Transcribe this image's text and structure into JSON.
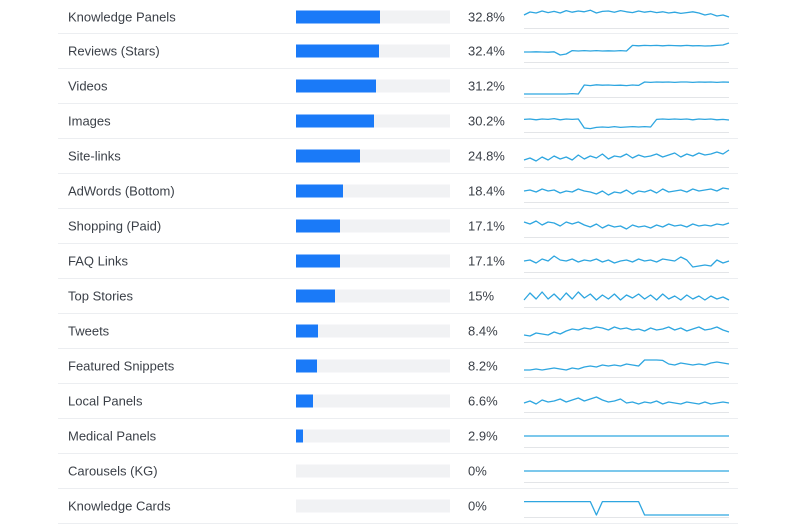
{
  "features": [
    {
      "label": "Knowledge Panels",
      "percent_text": "32.8%",
      "share": 0.328,
      "trend": [
        0.6,
        0.75,
        0.7,
        0.8,
        0.72,
        0.78,
        0.7,
        0.82,
        0.74,
        0.8,
        0.76,
        0.84,
        0.7,
        0.78,
        0.8,
        0.74,
        0.82,
        0.76,
        0.72,
        0.8,
        0.74,
        0.78,
        0.72,
        0.76,
        0.7,
        0.74,
        0.68,
        0.72,
        0.76,
        0.7,
        0.6,
        0.66,
        0.55,
        0.6,
        0.5
      ]
    },
    {
      "label": "Reviews (Stars)",
      "percent_text": "32.4%",
      "share": 0.324,
      "trend": [
        0.45,
        0.45,
        0.46,
        0.45,
        0.44,
        0.46,
        0.3,
        0.35,
        0.52,
        0.5,
        0.52,
        0.5,
        0.52,
        0.5,
        0.51,
        0.5,
        0.52,
        0.5,
        0.78,
        0.76,
        0.78,
        0.77,
        0.78,
        0.76,
        0.78,
        0.77,
        0.76,
        0.78,
        0.76,
        0.77,
        0.75,
        0.76,
        0.78,
        0.8,
        0.9
      ]
    },
    {
      "label": "Videos",
      "percent_text": "31.2%",
      "share": 0.312,
      "trend": [
        0.1,
        0.1,
        0.1,
        0.1,
        0.1,
        0.1,
        0.1,
        0.1,
        0.12,
        0.1,
        0.55,
        0.52,
        0.56,
        0.54,
        0.55,
        0.53,
        0.54,
        0.52,
        0.55,
        0.53,
        0.7,
        0.68,
        0.7,
        0.69,
        0.7,
        0.68,
        0.7,
        0.7,
        0.68,
        0.7,
        0.69,
        0.7,
        0.68,
        0.7,
        0.69
      ]
    },
    {
      "label": "Images",
      "percent_text": "30.2%",
      "share": 0.302,
      "trend": [
        0.58,
        0.6,
        0.56,
        0.6,
        0.58,
        0.62,
        0.56,
        0.6,
        0.58,
        0.6,
        0.15,
        0.12,
        0.18,
        0.2,
        0.18,
        0.22,
        0.18,
        0.2,
        0.22,
        0.2,
        0.22,
        0.2,
        0.58,
        0.6,
        0.58,
        0.6,
        0.58,
        0.6,
        0.56,
        0.6,
        0.58,
        0.6,
        0.56,
        0.58,
        0.55
      ]
    },
    {
      "label": "Site-links",
      "percent_text": "24.8%",
      "share": 0.248,
      "trend": [
        0.3,
        0.4,
        0.25,
        0.45,
        0.3,
        0.5,
        0.35,
        0.45,
        0.3,
        0.55,
        0.35,
        0.5,
        0.4,
        0.6,
        0.35,
        0.5,
        0.45,
        0.6,
        0.4,
        0.55,
        0.45,
        0.5,
        0.6,
        0.45,
        0.55,
        0.65,
        0.45,
        0.6,
        0.5,
        0.65,
        0.55,
        0.6,
        0.7,
        0.6,
        0.8
      ]
    },
    {
      "label": "AdWords (Bottom)",
      "percent_text": "18.4%",
      "share": 0.184,
      "trend": [
        0.5,
        0.55,
        0.45,
        0.6,
        0.5,
        0.55,
        0.4,
        0.5,
        0.45,
        0.6,
        0.5,
        0.45,
        0.35,
        0.5,
        0.3,
        0.45,
        0.4,
        0.55,
        0.35,
        0.5,
        0.45,
        0.55,
        0.4,
        0.6,
        0.45,
        0.5,
        0.55,
        0.45,
        0.6,
        0.5,
        0.55,
        0.6,
        0.5,
        0.65,
        0.6
      ]
    },
    {
      "label": "Shopping (Paid)",
      "percent_text": "17.1%",
      "share": 0.171,
      "trend": [
        0.7,
        0.6,
        0.75,
        0.55,
        0.7,
        0.65,
        0.5,
        0.7,
        0.6,
        0.7,
        0.55,
        0.45,
        0.6,
        0.4,
        0.55,
        0.45,
        0.5,
        0.35,
        0.55,
        0.45,
        0.5,
        0.4,
        0.55,
        0.45,
        0.6,
        0.5,
        0.55,
        0.45,
        0.6,
        0.5,
        0.55,
        0.5,
        0.6,
        0.55,
        0.65
      ]
    },
    {
      "label": "FAQ Links",
      "percent_text": "17.1%",
      "share": 0.171,
      "trend": [
        0.5,
        0.55,
        0.4,
        0.6,
        0.5,
        0.75,
        0.55,
        0.5,
        0.6,
        0.45,
        0.55,
        0.5,
        0.6,
        0.45,
        0.55,
        0.4,
        0.5,
        0.55,
        0.45,
        0.6,
        0.5,
        0.55,
        0.45,
        0.6,
        0.55,
        0.5,
        0.7,
        0.55,
        0.2,
        0.25,
        0.3,
        0.25,
        0.55,
        0.4,
        0.5
      ]
    },
    {
      "label": "Top Stories",
      "percent_text": "15%",
      "share": 0.15,
      "trend": [
        0.3,
        0.65,
        0.35,
        0.7,
        0.35,
        0.6,
        0.3,
        0.65,
        0.35,
        0.7,
        0.4,
        0.6,
        0.3,
        0.55,
        0.35,
        0.6,
        0.3,
        0.55,
        0.4,
        0.6,
        0.35,
        0.55,
        0.3,
        0.6,
        0.35,
        0.5,
        0.3,
        0.55,
        0.35,
        0.5,
        0.3,
        0.5,
        0.35,
        0.45,
        0.3
      ]
    },
    {
      "label": "Tweets",
      "percent_text": "8.4%",
      "share": 0.084,
      "trend": [
        0.3,
        0.25,
        0.4,
        0.35,
        0.3,
        0.45,
        0.35,
        0.5,
        0.6,
        0.55,
        0.65,
        0.6,
        0.7,
        0.65,
        0.55,
        0.7,
        0.6,
        0.65,
        0.55,
        0.6,
        0.5,
        0.65,
        0.55,
        0.6,
        0.7,
        0.55,
        0.65,
        0.5,
        0.6,
        0.7,
        0.55,
        0.6,
        0.7,
        0.55,
        0.45
      ]
    },
    {
      "label": "Featured Snippets",
      "percent_text": "8.2%",
      "share": 0.082,
      "trend": [
        0.3,
        0.3,
        0.35,
        0.3,
        0.35,
        0.4,
        0.35,
        0.3,
        0.4,
        0.35,
        0.45,
        0.5,
        0.45,
        0.55,
        0.5,
        0.55,
        0.5,
        0.6,
        0.55,
        0.5,
        0.8,
        0.8,
        0.8,
        0.78,
        0.6,
        0.55,
        0.65,
        0.6,
        0.55,
        0.6,
        0.55,
        0.65,
        0.7,
        0.65,
        0.6
      ]
    },
    {
      "label": "Local Panels",
      "percent_text": "6.6%",
      "share": 0.066,
      "trend": [
        0.4,
        0.5,
        0.35,
        0.55,
        0.45,
        0.5,
        0.6,
        0.45,
        0.55,
        0.65,
        0.5,
        0.6,
        0.7,
        0.55,
        0.45,
        0.5,
        0.6,
        0.4,
        0.45,
        0.35,
        0.45,
        0.4,
        0.5,
        0.35,
        0.45,
        0.4,
        0.35,
        0.45,
        0.4,
        0.35,
        0.45,
        0.35,
        0.4,
        0.45,
        0.4
      ]
    },
    {
      "label": "Medical Panels",
      "percent_text": "2.9%",
      "share": 0.029,
      "trend": [
        0.5,
        0.5,
        0.5,
        0.5,
        0.5,
        0.5,
        0.5,
        0.5,
        0.5,
        0.5,
        0.5,
        0.5,
        0.5,
        0.5,
        0.5,
        0.5,
        0.5,
        0.5,
        0.5,
        0.5,
        0.5,
        0.5,
        0.5,
        0.5,
        0.5,
        0.5,
        0.5,
        0.5,
        0.5,
        0.5,
        0.5,
        0.5,
        0.5,
        0.5,
        0.5
      ]
    },
    {
      "label": "Carousels (KG)",
      "percent_text": "0%",
      "share": 0.0,
      "trend": [
        0.5,
        0.5,
        0.5,
        0.5,
        0.5,
        0.5,
        0.5,
        0.5,
        0.5,
        0.5,
        0.5,
        0.5,
        0.5,
        0.5,
        0.5,
        0.5,
        0.5,
        0.5,
        0.5,
        0.5,
        0.5,
        0.5,
        0.5,
        0.5,
        0.5,
        0.5,
        0.5,
        0.5,
        0.5,
        0.5,
        0.5,
        0.5,
        0.5,
        0.5,
        0.5
      ]
    },
    {
      "label": "Knowledge Cards",
      "percent_text": "0%",
      "share": 0.0,
      "trend": [
        0.72,
        0.72,
        0.72,
        0.72,
        0.72,
        0.72,
        0.72,
        0.72,
        0.72,
        0.72,
        0.72,
        0.72,
        0.05,
        0.72,
        0.72,
        0.72,
        0.72,
        0.72,
        0.72,
        0.72,
        0.05,
        0.05,
        0.05,
        0.05,
        0.05,
        0.05,
        0.05,
        0.05,
        0.05,
        0.05,
        0.05,
        0.05,
        0.05,
        0.05,
        0.05
      ]
    }
  ],
  "colors": {
    "bar_fill": "#1a7af8",
    "bar_track": "#f1f2f4",
    "sparkline": "#2ea6e0"
  }
}
